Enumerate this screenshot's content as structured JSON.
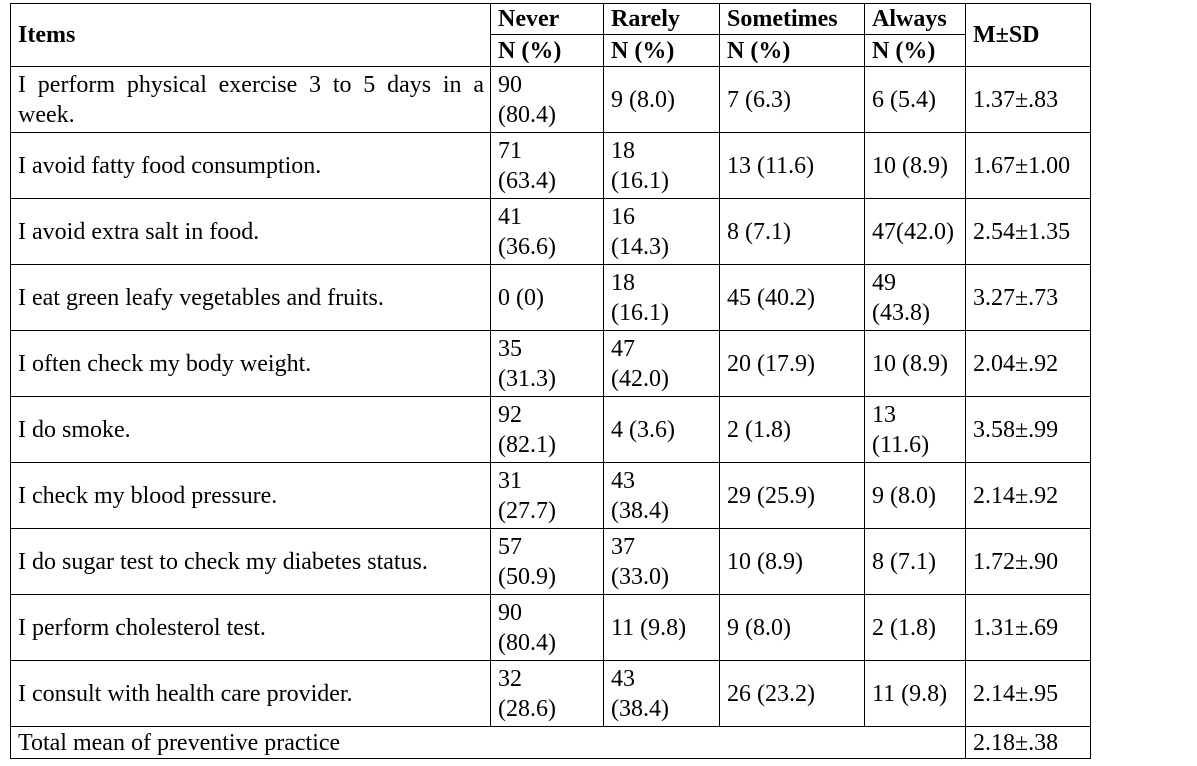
{
  "header": {
    "items": "Items",
    "never": "Never",
    "rarely": "Rarely",
    "sometimes": "Sometimes",
    "always": "Always",
    "msd": "M±SD",
    "n_pct": "N (%)"
  },
  "rows": [
    {
      "item": "I perform physical exercise 3 to 5 days in a week.",
      "never_n": "90",
      "never_p": "(80.4)",
      "rarely_n": "9 (8.0)",
      "rarely_p": "",
      "sometimes": "7 (6.3)",
      "always": "6 (5.4)",
      "msd": "1.37±.83"
    },
    {
      "item": "I avoid fatty food consumption.",
      "never_n": "71",
      "never_p": "(63.4)",
      "rarely_n": "18",
      "rarely_p": "(16.1)",
      "sometimes": "13 (11.6)",
      "always": "10 (8.9)",
      "msd": "1.67±1.00"
    },
    {
      "item": "I avoid extra salt in food.",
      "never_n": "41",
      "never_p": "(36.6)",
      "rarely_n": "16",
      "rarely_p": "(14.3)",
      "sometimes": "8 (7.1)",
      "always": "47(42.0)",
      "msd": "2.54±1.35"
    },
    {
      "item": "I eat green leafy vegetables and fruits.",
      "never_n": "0 (0)",
      "never_p": "",
      "rarely_n": "18",
      "rarely_p": "(16.1)",
      "sometimes": "45 (40.2)",
      "always": "49 (43.8)",
      "msd": "3.27±.73"
    },
    {
      "item": "I often check my body weight.",
      "never_n": "35",
      "never_p": "(31.3)",
      "rarely_n": "47",
      "rarely_p": "(42.0)",
      "sometimes": "20 (17.9)",
      "always": "10 (8.9)",
      "msd": "2.04±.92"
    },
    {
      "item": "I do smoke.",
      "never_n": "92",
      "never_p": "(82.1)",
      "rarely_n": "4 (3.6)",
      "rarely_p": "",
      "sometimes": "2 (1.8)",
      "always": "13 (11.6)",
      "msd": "3.58±.99"
    },
    {
      "item": "I check my blood pressure.",
      "never_n": "31",
      "never_p": "(27.7)",
      "rarely_n": "43",
      "rarely_p": "(38.4)",
      "sometimes": "29 (25.9)",
      "always": "9 (8.0)",
      "msd": "2.14±.92"
    },
    {
      "item": "I do sugar test to check my diabetes status.",
      "never_n": "57",
      "never_p": "(50.9)",
      "rarely_n": "37",
      "rarely_p": "(33.0)",
      "sometimes": "10 (8.9)",
      "always": "8 (7.1)",
      "msd": "1.72±.90"
    },
    {
      "item": "I perform cholesterol test.",
      "never_n": "90",
      "never_p": "(80.4)",
      "rarely_n": "11 (9.8)",
      "rarely_p": "",
      "sometimes": "9 (8.0)",
      "always": "2 (1.8)",
      "msd": "1.31±.69"
    },
    {
      "item": "I consult with health care provider.",
      "never_n": "32",
      "never_p": "(28.6)",
      "rarely_n": "43",
      "rarely_p": "(38.4)",
      "sometimes": "26 (23.2)",
      "always": "11 (9.8)",
      "msd": "2.14±.95"
    }
  ],
  "total": {
    "label": "Total mean of preventive practice",
    "msd": "2.18±.38"
  }
}
